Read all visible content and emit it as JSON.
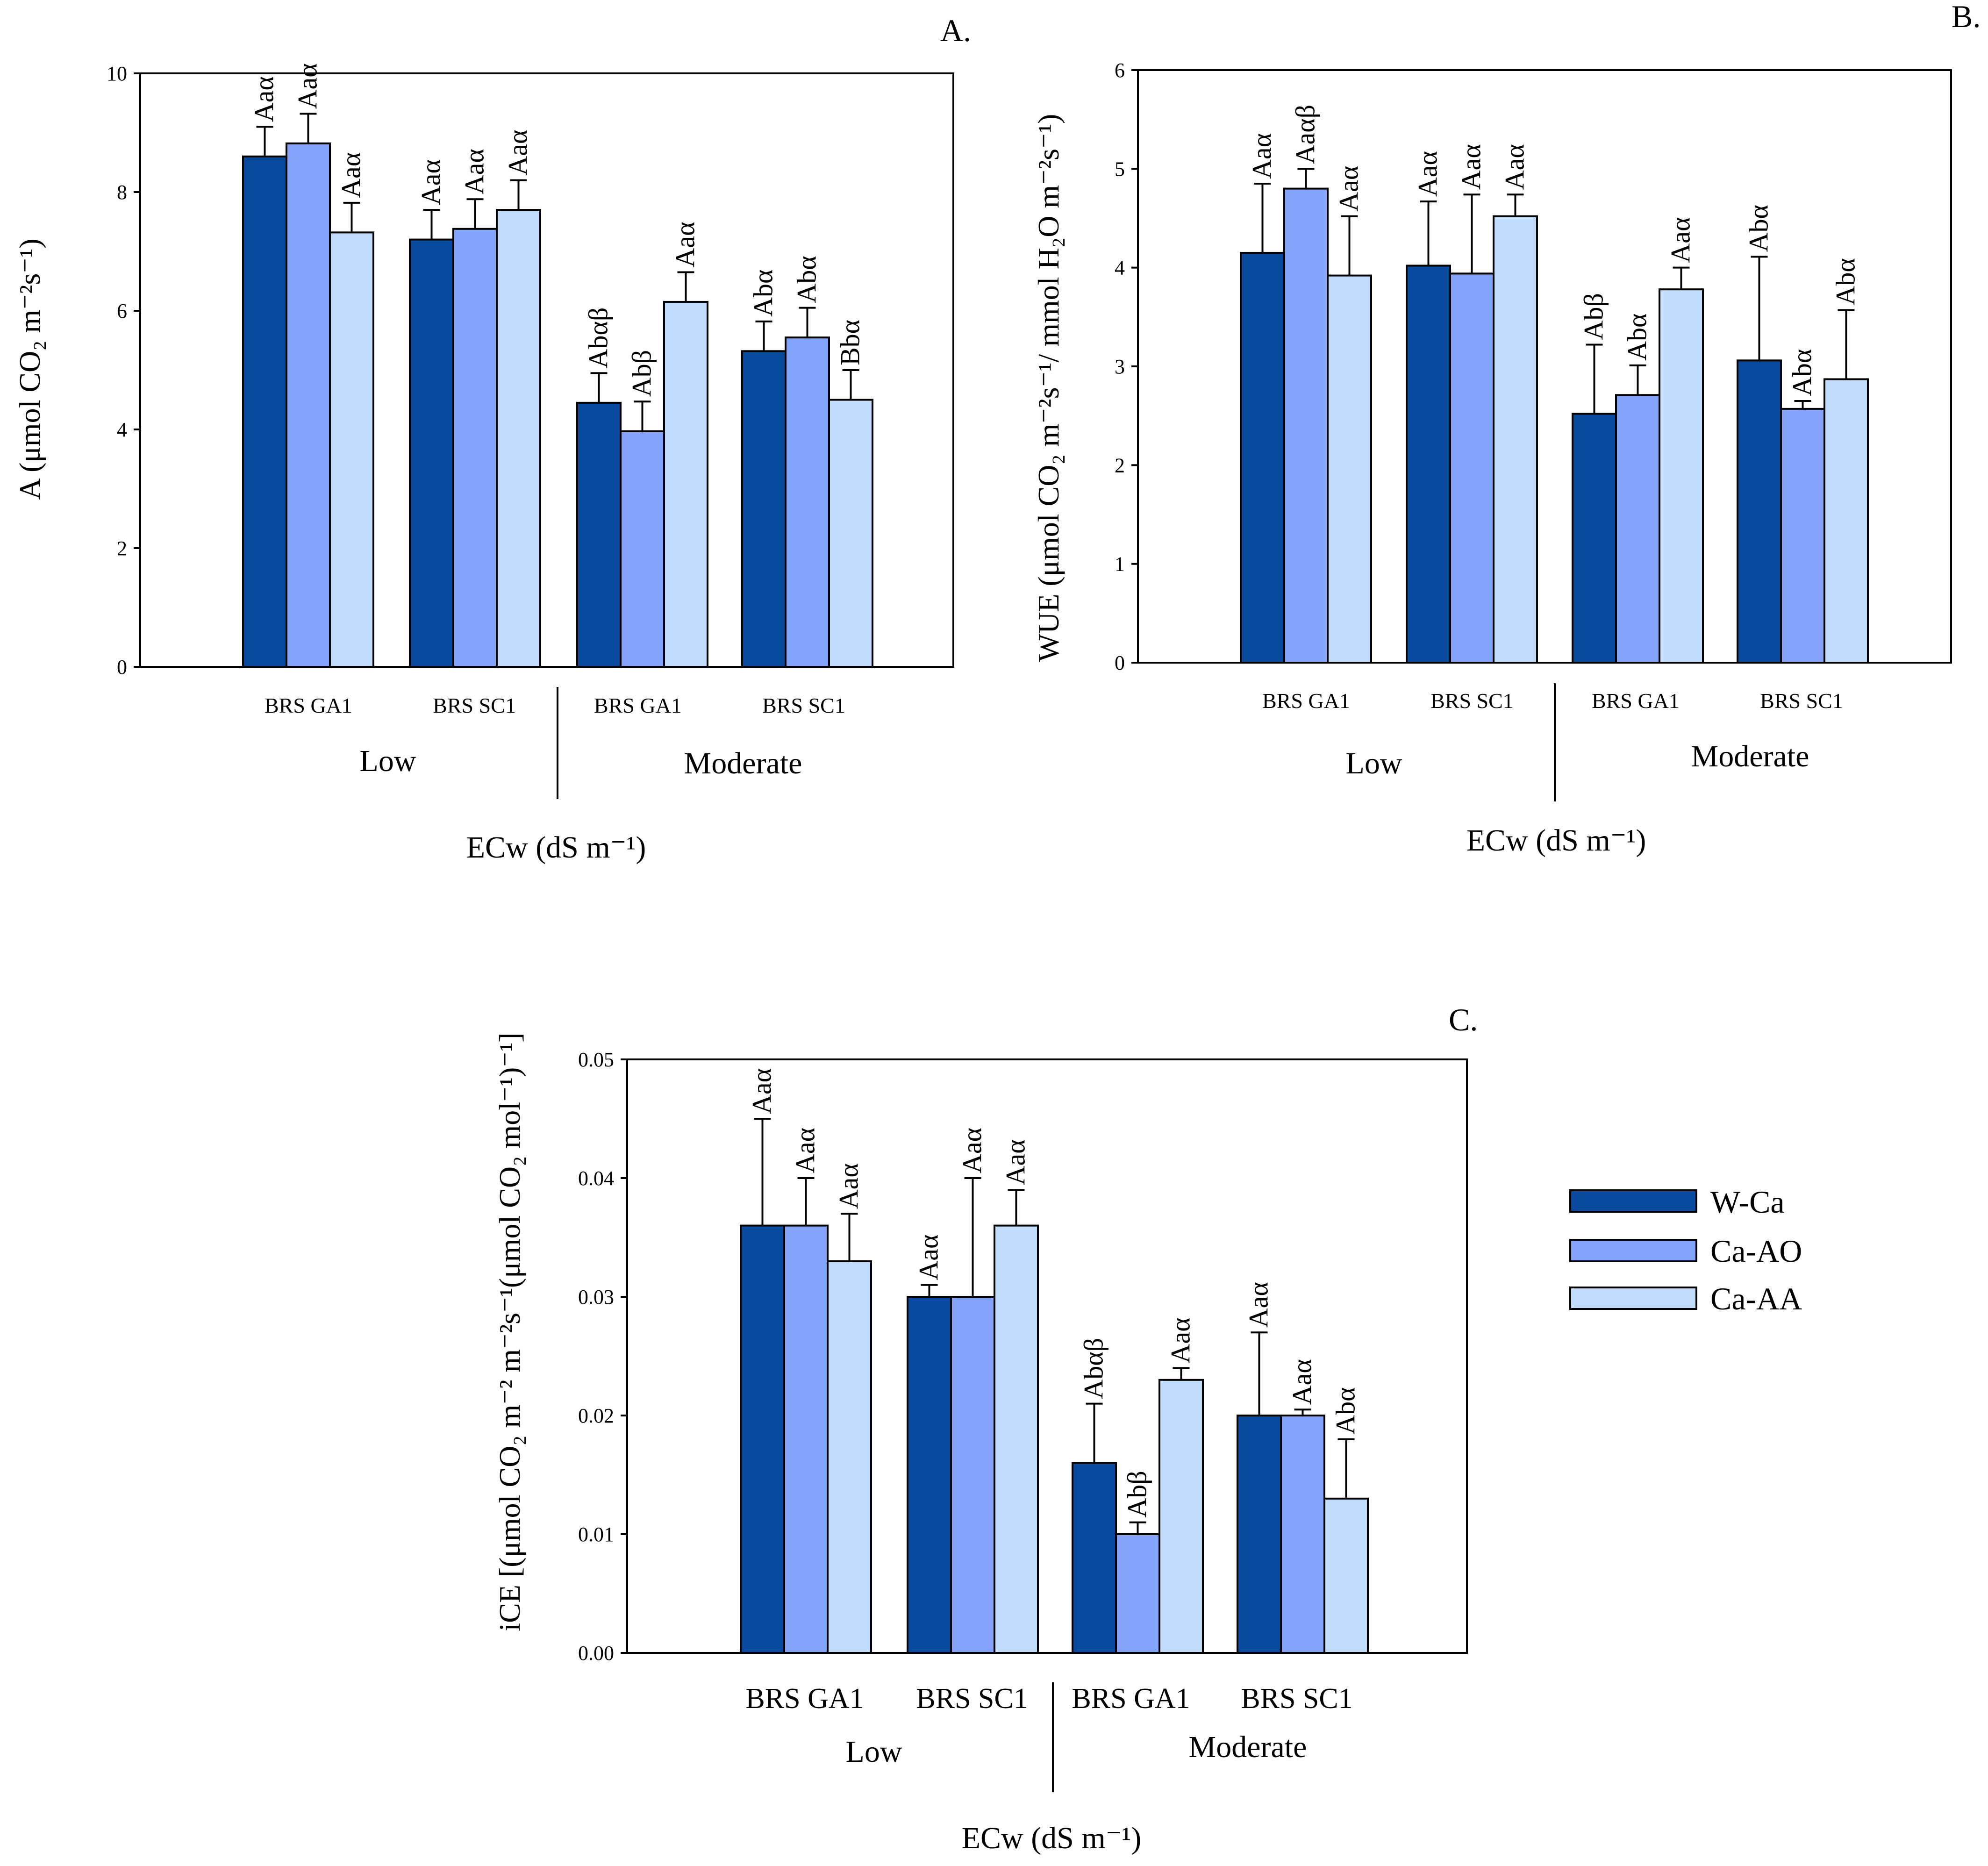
{
  "colors": {
    "W-Ca": "#084b9e",
    "Ca-AO": "#84a4fb",
    "Ca-AA": "#c1dcfd",
    "axis": "#000000"
  },
  "legend": {
    "items": [
      {
        "name": "W-Ca",
        "label": "W-Ca"
      },
      {
        "name": "Ca-AO",
        "label": "Ca-AO"
      },
      {
        "name": "Ca-AA",
        "label": "Ca-AA"
      }
    ]
  },
  "chart_data": [
    {
      "id": "A",
      "type": "bar",
      "panel_label": "A.",
      "ylabel": "A (μmol CO₂ m⁻²s⁻¹)",
      "xlabel": "ECw (dS m⁻¹)",
      "ylim": [
        0,
        10
      ],
      "yticks": [
        "0",
        "2",
        "4",
        "6",
        "8",
        "10"
      ],
      "categories": [
        "BRS GA1",
        "BRS SC1",
        "BRS GA1",
        "BRS SC1"
      ],
      "groups": [
        "Low",
        "Moderate"
      ],
      "series": [
        {
          "name": "W-Ca",
          "values": [
            8.6,
            7.2,
            4.45,
            5.32
          ],
          "errors": [
            0.5,
            0.5,
            0.5,
            0.5
          ],
          "labels": [
            "Aaα",
            "Aaα",
            "Abαβ",
            "Abα"
          ]
        },
        {
          "name": "Ca-AO",
          "values": [
            8.82,
            7.38,
            3.97,
            5.55
          ],
          "errors": [
            0.5,
            0.5,
            0.5,
            0.5
          ],
          "labels": [
            "Aaα",
            "Aaα",
            "Abβ",
            "Abα"
          ]
        },
        {
          "name": "Ca-AA",
          "values": [
            7.32,
            7.7,
            6.15,
            4.5
          ],
          "errors": [
            0.5,
            0.5,
            0.5,
            0.5
          ],
          "labels": [
            "Aaα",
            "Aaα",
            "Aaα",
            "Bbα"
          ]
        }
      ]
    },
    {
      "id": "B",
      "type": "bar",
      "panel_label": "B.",
      "ylabel": "WUE (μmol CO₂ m⁻²s⁻¹/ mmol H₂O m⁻²s⁻¹)",
      "xlabel": "ECw (dS m⁻¹)",
      "ylim": [
        0,
        6
      ],
      "yticks": [
        "0",
        "1",
        "2",
        "3",
        "4",
        "5",
        "6"
      ],
      "categories": [
        "BRS GA1",
        "BRS SC1",
        "BRS GA1",
        "BRS SC1"
      ],
      "groups": [
        "Low",
        "Moderate"
      ],
      "series": [
        {
          "name": "W-Ca",
          "values": [
            4.15,
            4.02,
            2.52,
            3.06
          ],
          "errors": [
            0.7,
            0.65,
            0.7,
            1.05
          ],
          "labels": [
            "Aaα",
            "Aaα",
            "Abβ",
            "Abα"
          ]
        },
        {
          "name": "Ca-AO",
          "values": [
            4.8,
            3.94,
            2.71,
            2.57
          ],
          "errors": [
            0.2,
            0.8,
            0.3,
            0.08
          ],
          "labels": [
            "Aaαβ",
            "Aaα",
            "Abα",
            "Abα"
          ]
        },
        {
          "name": "Ca-AA",
          "values": [
            3.92,
            4.52,
            3.78,
            2.87
          ],
          "errors": [
            0.6,
            0.22,
            0.22,
            0.7
          ],
          "labels": [
            "Aaα",
            "Aaα",
            "Aaα",
            "Abα"
          ]
        }
      ]
    },
    {
      "id": "C",
      "type": "bar",
      "panel_label": "C.",
      "ylabel": "iCE [(μmol CO₂ m⁻² m⁻²s⁻¹(μmol CO₂ mol⁻¹)⁻¹]",
      "xlabel": "ECw (dS m⁻¹)",
      "ylim": [
        0,
        0.05
      ],
      "yticks": [
        "0.00",
        "0.01",
        "0.02",
        "0.03",
        "0.04",
        "0.05"
      ],
      "categories": [
        "BRS GA1",
        "BRS SC1",
        "BRS GA1",
        "BRS SC1"
      ],
      "groups": [
        "Low",
        "Moderate"
      ],
      "series": [
        {
          "name": "W-Ca",
          "values": [
            0.036,
            0.03,
            0.016,
            0.02
          ],
          "errors": [
            0.009,
            0.001,
            0.005,
            0.007
          ],
          "labels": [
            "Aaα",
            "Aaα",
            "Abαβ",
            "Aaα"
          ]
        },
        {
          "name": "Ca-AO",
          "values": [
            0.036,
            0.03,
            0.01,
            0.02
          ],
          "errors": [
            0.004,
            0.01,
            0.001,
            0.0005
          ],
          "labels": [
            "Aaα",
            "Aaα",
            "Abβ",
            "Aaα"
          ]
        },
        {
          "name": "Ca-AA",
          "values": [
            0.033,
            0.036,
            0.023,
            0.013
          ],
          "errors": [
            0.004,
            0.003,
            0.001,
            0.005
          ],
          "labels": [
            "Aaα",
            "Aaα",
            "Aaα",
            "Abα"
          ]
        }
      ]
    }
  ]
}
